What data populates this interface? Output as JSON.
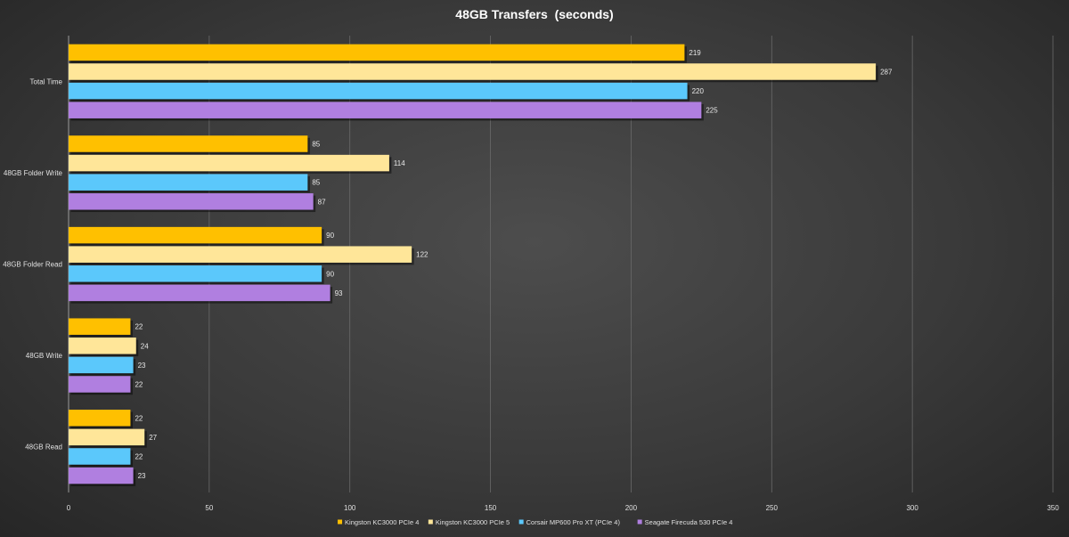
{
  "chart_data": {
    "type": "bar",
    "orientation": "horizontal",
    "title": "48GB Transfers  (seconds)",
    "xlabel": "",
    "ylabel": "",
    "xlim": [
      0,
      350
    ],
    "xticks": [
      0,
      50,
      100,
      150,
      200,
      250,
      300,
      350
    ],
    "grid": true,
    "legend_position": "bottom",
    "categories": [
      "Total Time",
      "48GB Folder Write",
      "48GB Folder Read",
      "48GB Write",
      "48GB Read"
    ],
    "series": [
      {
        "name": "Kingston KC3000 PCIe 4",
        "color": "#ffc000",
        "values": [
          219,
          85,
          90,
          22,
          22
        ]
      },
      {
        "name": "Kingston KC3000 PCIe 5",
        "color": "#ffe699",
        "values": [
          287,
          114,
          122,
          24,
          27
        ]
      },
      {
        "name": "Corsair MP600 Pro XT  (PCIe 4)",
        "color": "#5bc8fb",
        "values": [
          220,
          85,
          90,
          23,
          22
        ]
      },
      {
        "name": "Seagate Firecuda 530 PCIe 4",
        "color": "#b07fe0",
        "values": [
          225,
          87,
          93,
          22,
          23
        ]
      }
    ]
  }
}
